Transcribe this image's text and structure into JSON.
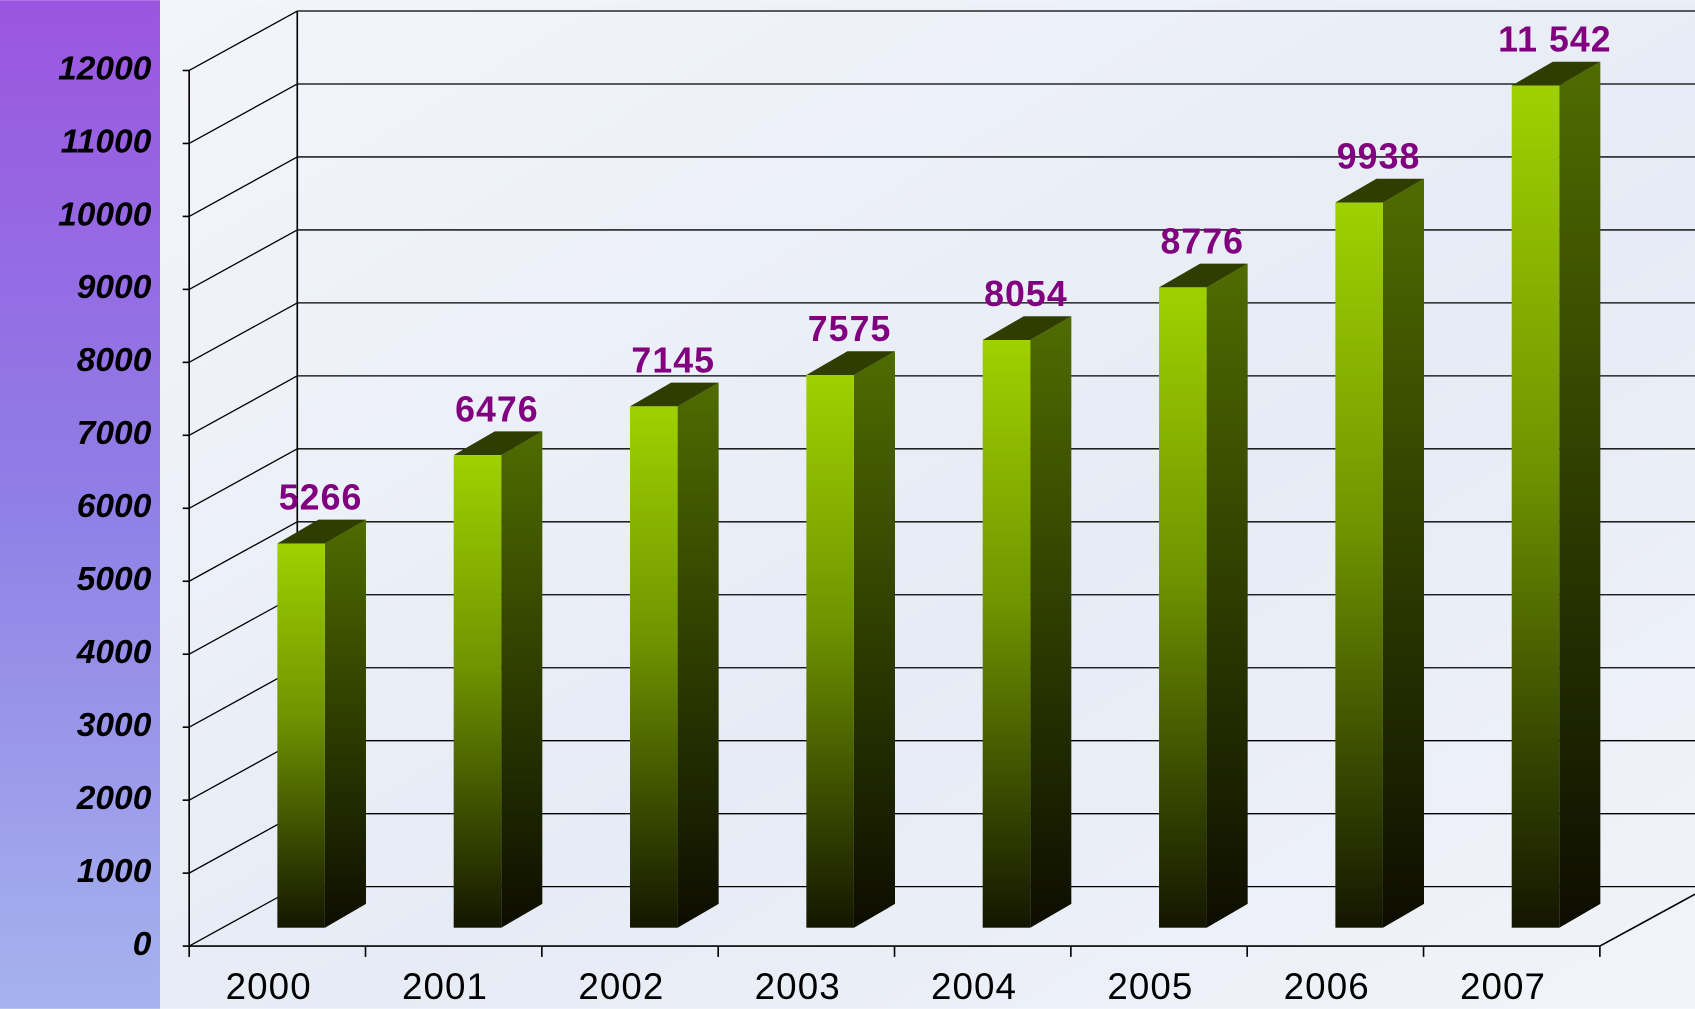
{
  "chart_data": {
    "type": "bar3d",
    "categories": [
      "2000",
      "2001",
      "2002",
      "2003",
      "2004",
      "2005",
      "2006",
      "2007"
    ],
    "values": [
      5266,
      6476,
      7145,
      7575,
      8054,
      8776,
      9938,
      11542
    ],
    "value_labels": [
      "5266",
      "6476",
      "7145",
      "7575",
      "8054",
      "8776",
      "9938",
      "11 542"
    ],
    "color": "#99cc00",
    "ylim": [
      0,
      12000
    ],
    "yticks": [
      0,
      1000,
      2000,
      3000,
      4000,
      5000,
      6000,
      7000,
      8000,
      9000,
      10000,
      11000,
      12000
    ],
    "grid": true
  }
}
